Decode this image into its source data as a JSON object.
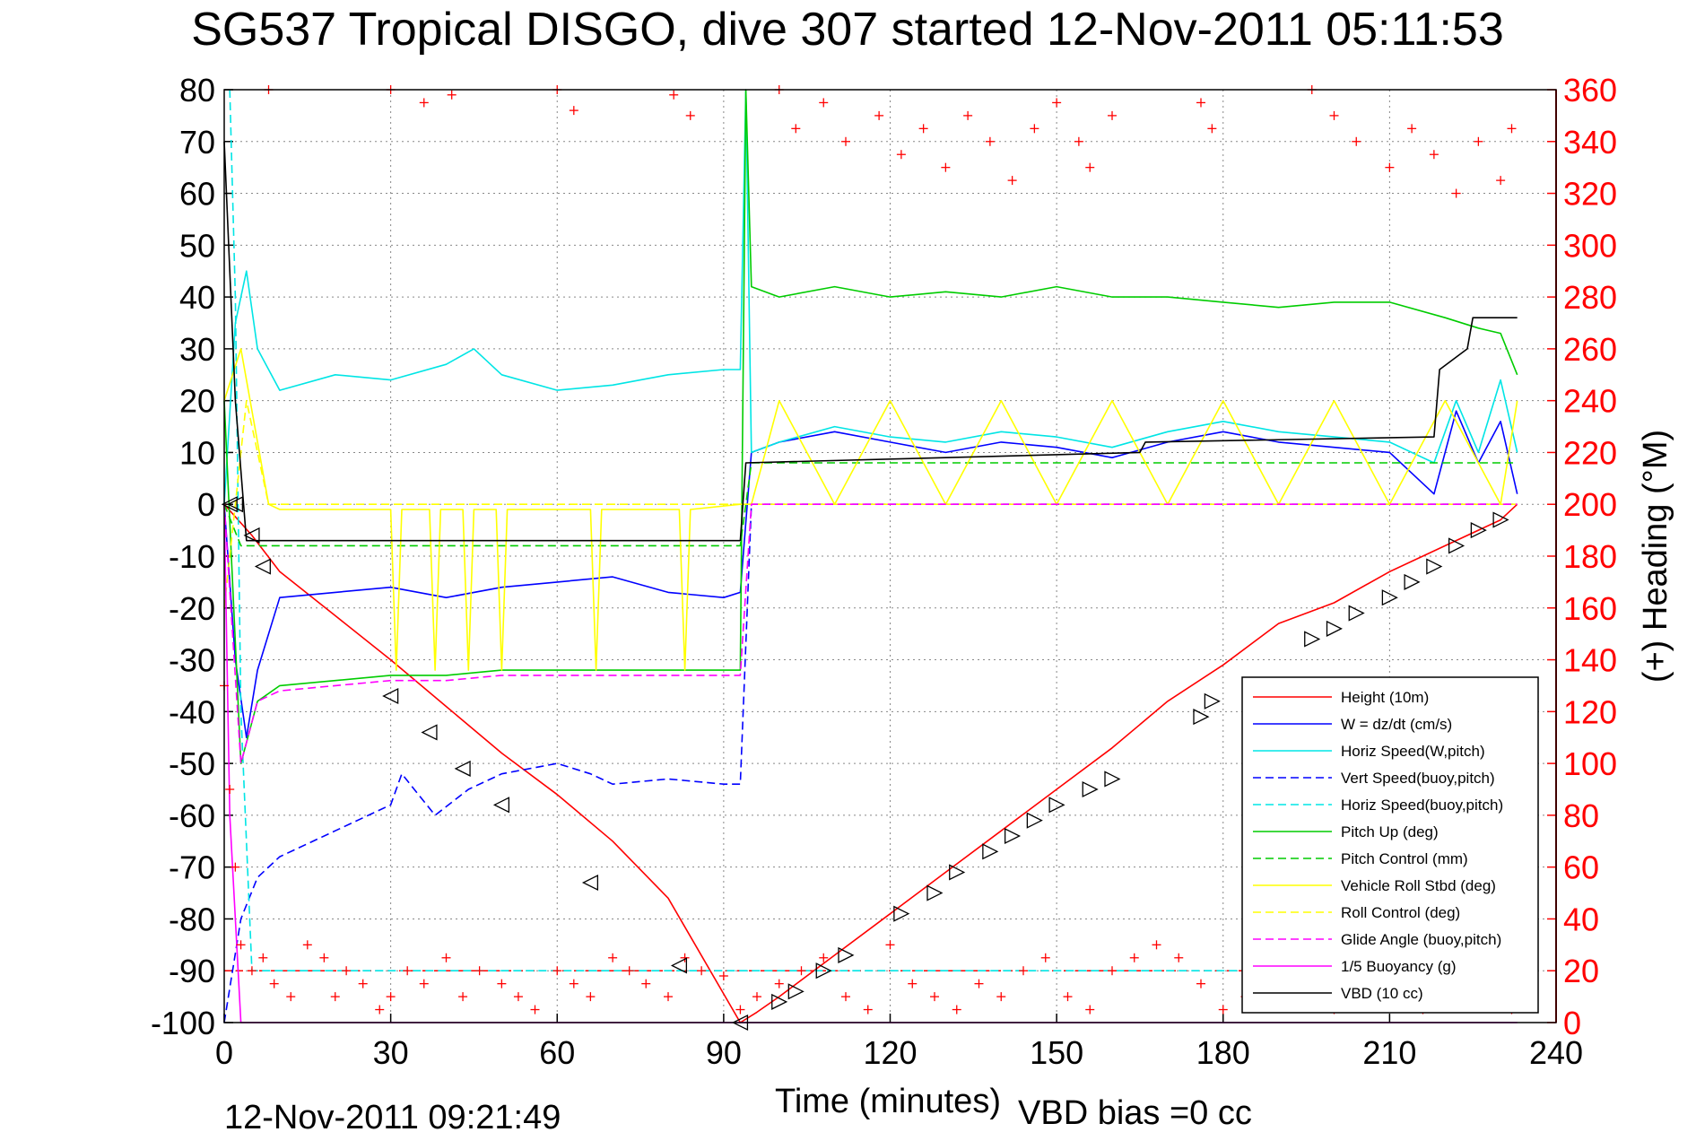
{
  "header": {
    "title": "SG537 Tropical DISGO, dive 307 started 12-Nov-2011 05:11:53"
  },
  "footer": {
    "timestamp": "12-Nov-2011 09:21:49",
    "vbd_bias": "VBD bias =0 cc"
  },
  "chart_data": {
    "type": "line",
    "title": "SG537 Tropical DISGO, dive 307 started 12-Nov-2011 05:11:53",
    "xlabel": "Time (minutes)",
    "ylabel_right": "(+) Heading (°M)",
    "xlim": [
      0,
      240
    ],
    "ylim_left": [
      -100,
      80
    ],
    "ylim_right": [
      0,
      360
    ],
    "x_ticks": [
      "0",
      "30",
      "60",
      "90",
      "120",
      "150",
      "180",
      "210",
      "240"
    ],
    "y_ticks_left": [
      "80",
      "70",
      "60",
      "50",
      "40",
      "30",
      "20",
      "10",
      "0",
      "-10",
      "-20",
      "-30",
      "-40",
      "-50",
      "-60",
      "-70",
      "-80",
      "-90",
      "-100"
    ],
    "y_ticks_right": [
      "360",
      "340",
      "320",
      "300",
      "280",
      "260",
      "240",
      "220",
      "200",
      "180",
      "160",
      "140",
      "120",
      "100",
      "80",
      "60",
      "40",
      "20",
      "0"
    ],
    "grid": true,
    "legend_position": "lower-right",
    "series": [
      {
        "name": "Height (10m)",
        "color": "#ff0000",
        "dash": false,
        "x": [
          0,
          5,
          10,
          20,
          30,
          40,
          50,
          60,
          70,
          80,
          93,
          96,
          100,
          110,
          120,
          130,
          140,
          150,
          160,
          170,
          180,
          190,
          200,
          210,
          220,
          230,
          233
        ],
        "y": [
          0,
          -6,
          -13,
          -21.5,
          -30,
          -39,
          -48,
          -56,
          -65,
          -76,
          -100,
          -98,
          -95,
          -87,
          -79,
          -71,
          -63,
          -55,
          -47,
          -38,
          -31,
          -23,
          -19,
          -13,
          -8,
          -3,
          0
        ]
      },
      {
        "name": "W = dz/dt (cm/s)",
        "color": "#0000ff",
        "dash": false,
        "x": [
          0,
          2,
          4,
          6,
          10,
          20,
          30,
          40,
          50,
          60,
          70,
          80,
          90,
          93,
          95,
          100,
          110,
          120,
          130,
          140,
          150,
          160,
          170,
          180,
          190,
          200,
          210,
          215,
          218,
          222,
          226,
          230,
          233
        ],
        "y": [
          0,
          -30,
          -45,
          -32,
          -18,
          -17,
          -16,
          -18,
          -16,
          -15,
          -14,
          -17,
          -18,
          -17,
          10,
          12,
          14,
          12,
          10,
          12,
          11,
          9,
          12,
          14,
          12,
          11,
          10,
          5,
          2,
          18,
          8,
          16,
          2
        ]
      },
      {
        "name": "Horiz Speed(W,pitch)",
        "color": "#00e5e5",
        "dash": false,
        "x": [
          0,
          2,
          4,
          6,
          10,
          20,
          30,
          40,
          45,
          50,
          60,
          70,
          80,
          90,
          93,
          94,
          95,
          100,
          110,
          120,
          130,
          140,
          150,
          160,
          170,
          180,
          190,
          200,
          210,
          218,
          222,
          226,
          230,
          233
        ],
        "y": [
          0,
          35,
          45,
          30,
          22,
          25,
          24,
          27,
          30,
          25,
          22,
          23,
          25,
          26,
          26,
          80,
          10,
          12,
          15,
          13,
          12,
          14,
          13,
          11,
          14,
          16,
          14,
          13,
          12,
          8,
          20,
          10,
          24,
          10
        ]
      },
      {
        "name": "Vert Speed(buoy,pitch)",
        "color": "#0000ff",
        "dash": true,
        "x": [
          0,
          3,
          6,
          10,
          20,
          30,
          32,
          38,
          44,
          50,
          60,
          66,
          70,
          80,
          90,
          93,
          95,
          233
        ],
        "y": [
          -100,
          -80,
          -72,
          -68,
          -63,
          -58,
          -52,
          -60,
          -55,
          -52,
          -50,
          -52,
          -54,
          -53,
          -54,
          -54,
          0,
          0
        ]
      },
      {
        "name": "Horiz Speed(buoy,pitch)",
        "color": "#00e5e5",
        "dash": true,
        "x": [
          1,
          2,
          3,
          5,
          233
        ],
        "y": [
          80,
          40,
          -40,
          -90,
          -90
        ]
      },
      {
        "name": "Pitch Up (deg)",
        "color": "#00cc00",
        "dash": false,
        "x": [
          0,
          3,
          6,
          10,
          20,
          30,
          40,
          50,
          60,
          70,
          80,
          90,
          93,
          94,
          95,
          100,
          110,
          120,
          130,
          140,
          150,
          160,
          170,
          180,
          190,
          200,
          210,
          220,
          226,
          230,
          233
        ],
        "y": [
          20,
          -50,
          -38,
          -35,
          -34,
          -33,
          -33,
          -32,
          -32,
          -32,
          -32,
          -32,
          -32,
          80,
          42,
          40,
          42,
          40,
          41,
          40,
          42,
          40,
          40,
          39,
          38,
          39,
          39,
          36,
          34,
          33,
          25
        ]
      },
      {
        "name": "Pitch Control (mm)",
        "color": "#00cc00",
        "dash": true,
        "x": [
          0,
          3,
          5,
          93,
          95,
          233
        ],
        "y": [
          0,
          -8,
          -8,
          -8,
          8,
          8
        ]
      },
      {
        "name": "Vehicle Roll Stbd (deg)",
        "color": "#ffff00",
        "dash": false,
        "x": [
          0,
          3,
          8,
          10,
          30,
          31,
          32,
          37,
          38,
          39,
          43,
          44,
          45,
          49,
          50,
          51,
          66,
          67,
          68,
          82,
          83,
          84,
          93,
          95,
          100,
          110,
          120,
          130,
          140,
          150,
          160,
          170,
          180,
          190,
          200,
          210,
          220,
          230,
          233
        ],
        "y": [
          20,
          30,
          0,
          -1,
          -1,
          -32,
          -1,
          -1,
          -32,
          -1,
          -1,
          -32,
          -1,
          -1,
          -32,
          -1,
          -1,
          -32,
          -1,
          -1,
          -32,
          -1,
          0,
          0,
          20,
          0,
          20,
          0,
          20,
          0,
          20,
          0,
          20,
          0,
          20,
          0,
          20,
          0,
          20
        ]
      },
      {
        "name": "Roll Control (deg)",
        "color": "#ffff00",
        "dash": true,
        "x": [
          0,
          4,
          8,
          93,
          95,
          233
        ],
        "y": [
          -20,
          20,
          0,
          0,
          0,
          0
        ]
      },
      {
        "name": "Glide Angle (buoy,pitch)",
        "color": "#ff00ff",
        "dash": true,
        "x": [
          0,
          3,
          6,
          10,
          20,
          30,
          40,
          50,
          60,
          70,
          80,
          90,
          93,
          95,
          233
        ],
        "y": [
          0,
          -50,
          -38,
          -36,
          -35,
          -34,
          -34,
          -33,
          -33,
          -33,
          -33,
          -33,
          -33,
          0,
          0
        ]
      },
      {
        "name": "1/5 Buoyancy (g)",
        "color": "#ff00ff",
        "dash": false,
        "x": [
          0,
          1,
          2,
          3,
          233
        ],
        "y": [
          0,
          -60,
          -80,
          -100,
          -100
        ]
      },
      {
        "name": "VBD (10 cc)",
        "color": "#000000",
        "dash": false,
        "x": [
          0,
          2,
          4,
          93,
          94,
          130,
          165,
          166,
          218,
          219,
          224,
          225,
          233
        ],
        "y": [
          70,
          20,
          -7,
          -7,
          8,
          9,
          10,
          12,
          13,
          26,
          30,
          36,
          36
        ]
      }
    ],
    "heading_points": {
      "name": "(+) Heading (°M)",
      "color": "#ff0000",
      "marker": "+",
      "axis": "right",
      "x": [
        0,
        1,
        2,
        3,
        5,
        7,
        9,
        12,
        15,
        18,
        20,
        22,
        25,
        28,
        30,
        33,
        36,
        40,
        43,
        46,
        50,
        53,
        56,
        60,
        63,
        66,
        70,
        73,
        76,
        80,
        83,
        86,
        90,
        93,
        96,
        100,
        104,
        108,
        112,
        116,
        120,
        124,
        128,
        132,
        136,
        140,
        144,
        148,
        152,
        156,
        160,
        164,
        168,
        172,
        176,
        180,
        184,
        188,
        192,
        196,
        200,
        204,
        208,
        212,
        216,
        220,
        224,
        228,
        232,
        8,
        30,
        36,
        41,
        60,
        63,
        81,
        84,
        100,
        103,
        108,
        112,
        118,
        122,
        126,
        130,
        134,
        138,
        142,
        146,
        150,
        154,
        156,
        160,
        176,
        178,
        196,
        200,
        204,
        210,
        214,
        218,
        222,
        226,
        230,
        232
      ],
      "y": [
        130,
        90,
        60,
        30,
        20,
        25,
        15,
        10,
        30,
        25,
        10,
        20,
        15,
        5,
        10,
        20,
        15,
        25,
        10,
        20,
        15,
        10,
        5,
        20,
        15,
        10,
        25,
        20,
        15,
        10,
        25,
        20,
        18,
        5,
        10,
        15,
        20,
        25,
        10,
        5,
        30,
        15,
        10,
        5,
        15,
        10,
        20,
        25,
        10,
        5,
        20,
        25,
        30,
        25,
        15,
        5,
        10,
        30,
        20,
        15,
        5,
        10,
        25,
        15,
        5,
        10,
        20,
        15,
        5,
        360,
        360,
        355,
        358,
        360,
        352,
        358,
        350,
        360,
        345,
        355,
        340,
        350,
        335,
        345,
        330,
        350,
        340,
        325,
        345,
        355,
        340,
        330,
        350,
        355,
        345,
        360,
        350,
        340,
        330,
        345,
        335,
        320,
        340,
        325,
        345
      ]
    },
    "depth_markers": {
      "marker": "triangle",
      "color": "#000000",
      "x": [
        1,
        2,
        5,
        7,
        30,
        37,
        43,
        50,
        66,
        82,
        93,
        100,
        103,
        108,
        112,
        122,
        128,
        132,
        138,
        142,
        146,
        150,
        156,
        160,
        176,
        178,
        196,
        200,
        204,
        210,
        214,
        218,
        222,
        226,
        230
      ],
      "y": [
        0,
        0,
        -6,
        -12,
        -37,
        -44,
        -51,
        -58,
        -73,
        -89,
        -100,
        -96,
        -94,
        -90,
        -87,
        -79,
        -75,
        -71,
        -67,
        -64,
        -61,
        -58,
        -55,
        -53,
        -41,
        -38,
        -26,
        -24,
        -21,
        -18,
        -15,
        -12,
        -8,
        -5,
        -3
      ]
    },
    "reference_lines": [
      {
        "axis": "right",
        "y": 20,
        "color": "#ff0000",
        "dash": true,
        "x_from": 0,
        "x_to": 233
      }
    ]
  }
}
